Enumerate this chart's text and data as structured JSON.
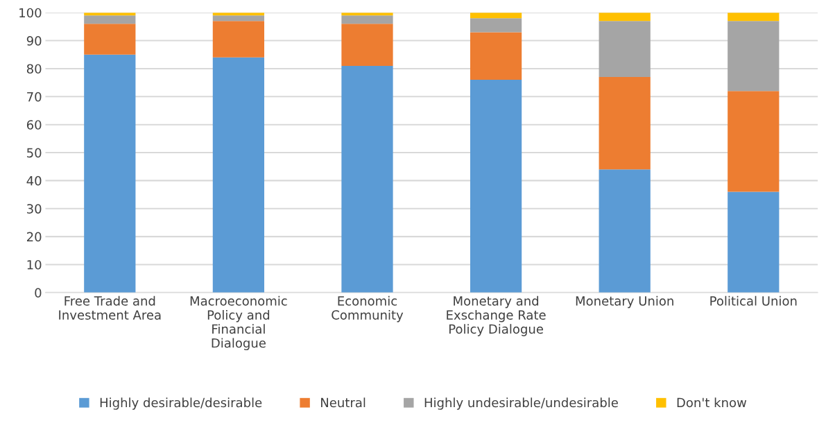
{
  "chart_data": {
    "type": "bar",
    "stacked": true,
    "categories": [
      "Free Trade and\nInvestment Area",
      "Macroeconomic\nPolicy and\nFinancial\nDialogue",
      "Economic\nCommunity",
      "Monetary and\nExschange Rate\nPolicy Dialogue",
      "Monetary Union",
      "Political Union"
    ],
    "series": [
      {
        "name": "Highly desirable/desirable",
        "color": "#5b9bd5",
        "values": [
          85,
          84,
          81,
          76,
          44,
          36
        ]
      },
      {
        "name": "Neutral",
        "color": "#ed7d31",
        "values": [
          11,
          13,
          15,
          17,
          33,
          36
        ]
      },
      {
        "name": "Highly undesirable/undesirable",
        "color": "#a5a5a5",
        "values": [
          3,
          2,
          3,
          5,
          20,
          25
        ]
      },
      {
        "name": "Don't know",
        "color": "#ffc000",
        "values": [
          1,
          1,
          1,
          2,
          3,
          3
        ]
      }
    ],
    "ylim": [
      0,
      100
    ],
    "yticks": [
      0,
      10,
      20,
      30,
      40,
      50,
      60,
      70,
      80,
      90,
      100
    ],
    "grid": "y",
    "legend": "bottom"
  }
}
